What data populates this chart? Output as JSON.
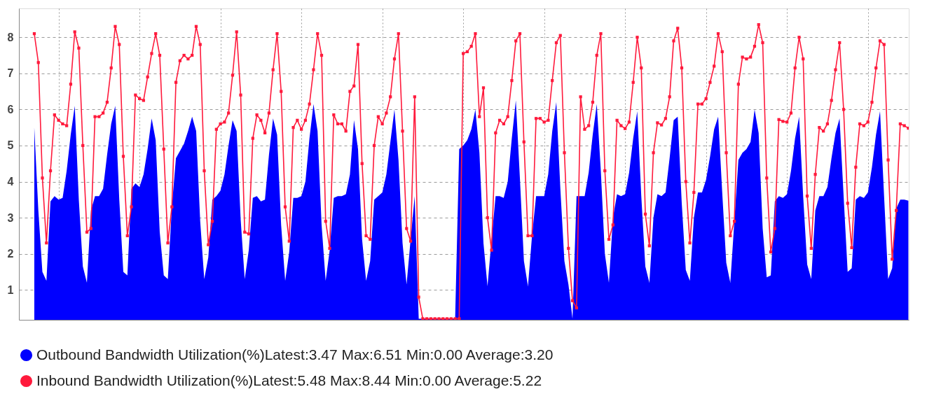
{
  "chart_data": {
    "type": "line",
    "ylim": [
      0.17,
      8.8
    ],
    "yticks": [
      1,
      2,
      3,
      4,
      5,
      6,
      7,
      8
    ],
    "categories": [
      null,
      null,
      null,
      null,
      null,
      null,
      null,
      null,
      null,
      null,
      null,
      null,
      null,
      null,
      null,
      null,
      null,
      null,
      null,
      null,
      null,
      null,
      null,
      null,
      null,
      null,
      null,
      null,
      null,
      null,
      null,
      null,
      null,
      null,
      null,
      null,
      null,
      null,
      null,
      null,
      null,
      null,
      null,
      null,
      null,
      null,
      null,
      null,
      null,
      null,
      null,
      null,
      null,
      null,
      null,
      null,
      null,
      null,
      null,
      null,
      null,
      null,
      null,
      null,
      null,
      null,
      null,
      null,
      null,
      null,
      null,
      null,
      null,
      null,
      null,
      null,
      null,
      null,
      null,
      null,
      null,
      null,
      null,
      null,
      null,
      null,
      null,
      null,
      null,
      null,
      null,
      null,
      null,
      null,
      null,
      null,
      null,
      null,
      null,
      null,
      null,
      null,
      null,
      null,
      null,
      null,
      null,
      null,
      null,
      null,
      null,
      null,
      null,
      null,
      null,
      null,
      null,
      null,
      null,
      null,
      null,
      null,
      null,
      null,
      null,
      null,
      null,
      null,
      null,
      null,
      null,
      null,
      null,
      null,
      null,
      null,
      null,
      null,
      null,
      null,
      null,
      null,
      null,
      null,
      null,
      null,
      null,
      null,
      null,
      null,
      null,
      null,
      null,
      null,
      null,
      null,
      null,
      null,
      null,
      null,
      null,
      null,
      null,
      null,
      null,
      null,
      null,
      null,
      null,
      null,
      null,
      null,
      null,
      null,
      null,
      null,
      null,
      null,
      null,
      null,
      null,
      null,
      null,
      null,
      null,
      null,
      null,
      null,
      null,
      null,
      null,
      null,
      null,
      null,
      null,
      null,
      null,
      null,
      null,
      null,
      null,
      null,
      null,
      null,
      null,
      null,
      null,
      null,
      null,
      null,
      null,
      null,
      null,
      null,
      null,
      null,
      null
    ],
    "tick_labels": "y",
    "grid": true,
    "legend": "bottom",
    "series": [
      {
        "name": "Outbound Bandwidth Utilization(%)Latest:3.47   Max:6.51   Min:0.00   Average:3.20",
        "type": "area",
        "color": "#0000ff",
        "values": [
          5.5,
          3.2,
          1.5,
          1.25,
          3.45,
          3.6,
          3.5,
          3.55,
          4.3,
          5.3,
          6.1,
          3.5,
          1.65,
          1.2,
          3.2,
          3.6,
          3.6,
          3.8,
          4.75,
          5.6,
          6.1,
          3.5,
          1.5,
          1.4,
          3.8,
          3.95,
          3.85,
          4.2,
          4.9,
          5.75,
          5.15,
          2.6,
          1.4,
          1.3,
          3.3,
          4.65,
          4.85,
          5.05,
          5.4,
          5.8,
          5.4,
          2.9,
          1.3,
          1.9,
          3.5,
          3.6,
          3.75,
          4.2,
          5.0,
          5.7,
          5.4,
          2.95,
          1.3,
          2.1,
          3.55,
          3.6,
          3.45,
          3.5,
          4.75,
          5.75,
          5.3,
          2.8,
          1.25,
          2.05,
          3.55,
          3.55,
          3.6,
          4.0,
          5.2,
          6.15,
          5.4,
          2.8,
          1.25,
          2.1,
          3.55,
          3.6,
          3.6,
          3.65,
          4.2,
          5.7,
          4.9,
          2.4,
          1.25,
          1.8,
          3.5,
          3.6,
          3.7,
          4.2,
          5.1,
          6.0,
          4.6,
          2.3,
          1.15,
          2.4,
          3.6,
          0.2,
          0.2,
          0.2,
          0.2,
          0.2,
          0.2,
          0.2,
          0.2,
          0.2,
          0.2,
          4.9,
          5.0,
          5.15,
          5.45,
          6.0,
          4.8,
          2.3,
          1.1,
          2.4,
          3.6,
          3.6,
          3.55,
          4.0,
          5.2,
          6.25,
          4.1,
          1.8,
          1.1,
          2.5,
          3.6,
          3.6,
          3.6,
          4.2,
          5.4,
          6.2,
          3.8,
          1.8,
          1.15,
          0.2,
          3.6,
          3.6,
          3.6,
          4.25,
          5.3,
          6.15,
          4.3,
          2.0,
          1.2,
          3.0,
          3.65,
          3.6,
          3.65,
          4.25,
          5.2,
          5.95,
          3.6,
          1.65,
          1.2,
          3.0,
          3.65,
          3.6,
          3.7,
          4.65,
          5.7,
          5.8,
          3.4,
          1.55,
          1.25,
          3.0,
          3.7,
          3.7,
          4.05,
          4.7,
          5.45,
          5.8,
          3.7,
          1.75,
          1.2,
          2.9,
          4.6,
          4.8,
          4.9,
          5.1,
          6.0,
          5.35,
          2.7,
          1.35,
          1.4,
          3.45,
          3.6,
          3.55,
          3.65,
          4.3,
          5.2,
          5.8,
          3.6,
          1.7,
          1.3,
          3.2,
          3.6,
          3.6,
          3.85,
          4.65,
          5.35,
          5.75,
          3.6,
          1.5,
          1.6,
          3.5,
          3.6,
          3.55,
          3.7,
          4.4,
          5.3,
          5.95,
          3.6,
          1.3,
          1.6,
          3.25,
          3.5,
          3.5,
          3.47
        ]
      },
      {
        "name": "Inbound Bandwidth Utilization(%)Latest:5.48   Max:8.44   Min:0.00   Average:5.22",
        "color": "#ff1a3c",
        "marker": "square",
        "values": [
          8.1,
          7.3,
          4.1,
          2.3,
          4.3,
          5.85,
          5.7,
          5.6,
          5.55,
          6.7,
          8.15,
          7.7,
          5.0,
          2.6,
          2.7,
          5.8,
          5.8,
          5.9,
          6.2,
          7.15,
          8.3,
          7.8,
          4.7,
          2.5,
          3.3,
          6.4,
          6.3,
          6.25,
          6.9,
          7.55,
          8.1,
          7.5,
          4.9,
          2.3,
          3.3,
          6.75,
          7.35,
          7.5,
          7.4,
          7.5,
          8.3,
          7.8,
          4.3,
          2.25,
          2.9,
          5.45,
          5.6,
          5.65,
          5.9,
          6.95,
          8.15,
          6.4,
          2.6,
          2.55,
          5.2,
          5.85,
          5.7,
          5.35,
          5.9,
          7.1,
          8.1,
          6.5,
          3.3,
          2.35,
          5.5,
          5.7,
          5.45,
          5.7,
          6.15,
          7.1,
          8.1,
          7.5,
          2.9,
          2.15,
          5.85,
          5.6,
          5.6,
          5.4,
          6.5,
          6.65,
          7.8,
          4.5,
          2.5,
          2.4,
          5.0,
          5.8,
          5.6,
          5.9,
          6.35,
          7.4,
          8.1,
          5.4,
          2.7,
          2.35,
          6.35,
          0.8,
          0.2,
          0.2,
          0.2,
          0.2,
          0.2,
          0.2,
          0.2,
          0.2,
          0.2,
          0.2,
          7.55,
          7.6,
          7.75,
          8.1,
          5.8,
          6.6,
          3.0,
          2.1,
          5.35,
          5.7,
          5.6,
          5.8,
          6.8,
          7.9,
          8.1,
          5.1,
          2.5,
          2.5,
          5.75,
          5.75,
          5.65,
          5.7,
          6.8,
          7.85,
          8.05,
          4.8,
          2.15,
          0.7,
          0.5,
          6.35,
          5.45,
          5.55,
          6.2,
          7.5,
          8.1,
          4.3,
          2.4,
          2.8,
          5.7,
          5.55,
          5.47,
          5.65,
          6.75,
          8.0,
          7.15,
          3.1,
          2.22,
          4.8,
          5.63,
          5.57,
          5.75,
          6.35,
          7.9,
          8.25,
          7.15,
          4.0,
          2.3,
          3.7,
          6.15,
          6.15,
          6.3,
          6.75,
          7.2,
          8.1,
          7.6,
          4.8,
          2.5,
          2.9,
          6.7,
          7.45,
          7.4,
          7.45,
          7.75,
          8.35,
          7.85,
          4.1,
          2.05,
          2.7,
          5.72,
          5.67,
          5.65,
          5.9,
          7.15,
          8.0,
          7.4,
          3.6,
          2.15,
          4.2,
          5.5,
          5.4,
          5.6,
          6.25,
          7.1,
          7.85,
          6.0,
          3.4,
          2.17,
          4.4,
          5.6,
          5.55,
          5.65,
          6.2,
          7.15,
          7.9,
          7.8,
          4.6,
          1.85,
          3.2,
          5.6,
          5.55,
          5.48
        ]
      }
    ]
  }
}
